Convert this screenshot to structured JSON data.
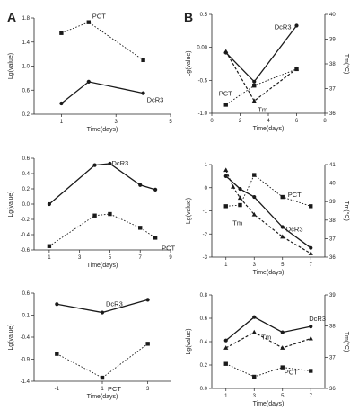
{
  "panel_labels": [
    "A",
    "B"
  ],
  "chart_data": [
    {
      "id": "A1",
      "type": "line",
      "title": "",
      "xlabel": "Time(days)",
      "ylabel": "Lg(value)",
      "xlim": [
        0,
        5
      ],
      "ylim": [
        0.2,
        1.8
      ],
      "xticks": [
        1,
        3,
        5
      ],
      "yticks": [
        0.2,
        0.6,
        1.0,
        1.4,
        1.8
      ],
      "yticklabels": [
        "0.2",
        "0.6",
        "1.0",
        "1.4",
        "1.8"
      ],
      "series": [
        {
          "name": "PCT",
          "style": "dotted",
          "marker": "square",
          "x": [
            1,
            2,
            4
          ],
          "y": [
            1.55,
            1.73,
            1.1
          ]
        },
        {
          "name": "DcR3",
          "style": "solid",
          "marker": "circle",
          "x": [
            1,
            2,
            4
          ],
          "y": [
            0.38,
            0.74,
            0.55
          ]
        }
      ]
    },
    {
      "id": "B1",
      "type": "line",
      "title": "",
      "xlabel": "Time(days)",
      "ylabel": "Lg(value)",
      "y2label": "Tm(°C)",
      "xlim": [
        0,
        8
      ],
      "ylim": [
        -1.0,
        0.5
      ],
      "y2lim": [
        36,
        40
      ],
      "xticks": [
        0,
        2,
        4,
        6,
        8
      ],
      "yticks": [
        -1.0,
        -0.5,
        0.0,
        0.5
      ],
      "yticklabels": [
        "-1.0",
        "-0.5",
        "0.00",
        "0.5"
      ],
      "y2ticks": [
        36,
        37,
        38,
        39,
        40
      ],
      "series": [
        {
          "name": "DcR3",
          "style": "solid",
          "marker": "circle",
          "x": [
            1,
            3,
            6
          ],
          "y": [
            -0.08,
            -0.52,
            0.33
          ]
        },
        {
          "name": "PCT",
          "style": "dotted",
          "marker": "square",
          "x": [
            1,
            3,
            6
          ],
          "y": [
            -0.87,
            -0.58,
            -0.33
          ]
        },
        {
          "name": "Tm",
          "style": "dashed",
          "marker": "triangle",
          "axis": "right",
          "x": [
            1,
            3,
            6
          ],
          "y": [
            38.5,
            36.5,
            37.8
          ]
        }
      ]
    },
    {
      "id": "A2",
      "type": "line",
      "title": "",
      "xlabel": "Time(days)",
      "ylabel": "Lg(value)",
      "xlim": [
        0,
        9
      ],
      "ylim": [
        -0.6,
        0.6
      ],
      "xticks": [
        1,
        3,
        5,
        7,
        9
      ],
      "yticks": [
        -0.6,
        -0.4,
        -0.2,
        0.0,
        0.2,
        0.4,
        0.6
      ],
      "yticklabels": [
        "-0.6",
        "-0.4",
        "-0.2",
        "0.0",
        "0.2",
        "0.4",
        "0.6"
      ],
      "series": [
        {
          "name": "DcR3",
          "style": "solid",
          "marker": "circle",
          "x": [
            1,
            4,
            5,
            7,
            8
          ],
          "y": [
            0.0,
            0.51,
            0.53,
            0.25,
            0.19
          ]
        },
        {
          "name": "PCT",
          "style": "dotted",
          "marker": "square",
          "x": [
            1,
            4,
            5,
            7,
            8
          ],
          "y": [
            -0.55,
            -0.15,
            -0.13,
            -0.31,
            -0.44
          ]
        }
      ]
    },
    {
      "id": "B2",
      "type": "line",
      "title": "",
      "xlabel": "Time(days)",
      "ylabel": "Lg(value)",
      "y2label": "Tm(°C)",
      "xlim": [
        0,
        8
      ],
      "ylim": [
        -3,
        1
      ],
      "y2lim": [
        36,
        41
      ],
      "xticks": [
        1,
        3,
        5,
        7
      ],
      "yticks": [
        -3,
        -2,
        -1,
        0,
        1
      ],
      "yticklabels": [
        "-3",
        "-2",
        "-1",
        "0",
        "1"
      ],
      "y2ticks": [
        36,
        37,
        38,
        39,
        40,
        41
      ],
      "series": [
        {
          "name": "PCT",
          "style": "dotted",
          "marker": "square",
          "x": [
            1,
            2,
            3,
            5,
            7
          ],
          "y": [
            -0.8,
            -0.75,
            0.55,
            -0.4,
            -0.8
          ]
        },
        {
          "name": "DcR3",
          "style": "solid",
          "marker": "circle",
          "x": [
            1,
            2,
            3,
            5,
            7
          ],
          "y": [
            0.5,
            -0.05,
            -0.4,
            -1.7,
            -2.6
          ]
        },
        {
          "name": "Tm",
          "style": "dashed",
          "marker": "triangle",
          "axis": "right",
          "x": [
            1,
            1.5,
            2,
            3,
            5,
            7
          ],
          "y": [
            40.7,
            39.8,
            39.2,
            38.3,
            37.1,
            36.2
          ]
        }
      ]
    },
    {
      "id": "A3",
      "type": "line",
      "title": "",
      "xlabel": "Time(days)",
      "ylabel": "Lg(value)",
      "xlim": [
        -2,
        4
      ],
      "ylim": [
        -1.4,
        0.6
      ],
      "xticks": [
        -1,
        1,
        3
      ],
      "yticks": [
        -1.4,
        -0.9,
        -0.4,
        0.1,
        0.6
      ],
      "yticklabels": [
        "-1.4",
        "-0.9",
        "-0.4",
        "0.1",
        "0.6"
      ],
      "series": [
        {
          "name": "DcR3",
          "style": "solid",
          "marker": "circle",
          "x": [
            -1,
            1,
            3
          ],
          "y": [
            0.35,
            0.16,
            0.45
          ]
        },
        {
          "name": "PCT",
          "style": "dotted",
          "marker": "square",
          "x": [
            -1,
            1,
            3
          ],
          "y": [
            -0.78,
            -1.32,
            -0.55
          ]
        }
      ]
    },
    {
      "id": "B3",
      "type": "line",
      "title": "",
      "xlabel": "Time(days)",
      "ylabel": "Lg(value)",
      "y2label": "Tm(°C)",
      "xlim": [
        0,
        8
      ],
      "ylim": [
        0.0,
        0.8
      ],
      "y2lim": [
        36,
        39
      ],
      "xticks": [
        1,
        3,
        5,
        7
      ],
      "yticks": [
        0.0,
        0.2,
        0.4,
        0.6,
        0.8
      ],
      "yticklabels": [
        "0.0",
        "0.2",
        "0.4",
        "0.6",
        "0.8"
      ],
      "y2ticks": [
        36,
        37,
        38,
        39
      ],
      "series": [
        {
          "name": "DcR3",
          "style": "solid",
          "marker": "circle",
          "x": [
            1,
            3,
            5,
            7
          ],
          "y": [
            0.41,
            0.61,
            0.48,
            0.53
          ]
        },
        {
          "name": "Tm",
          "style": "dashed",
          "marker": "triangle",
          "axis": "right",
          "x": [
            1,
            3,
            5,
            7
          ],
          "y": [
            37.3,
            37.8,
            37.3,
            37.6
          ]
        },
        {
          "name": "PCT",
          "style": "dotted",
          "marker": "square",
          "x": [
            1,
            3,
            5,
            7
          ],
          "y": [
            0.21,
            0.1,
            0.18,
            0.15
          ]
        }
      ]
    }
  ]
}
